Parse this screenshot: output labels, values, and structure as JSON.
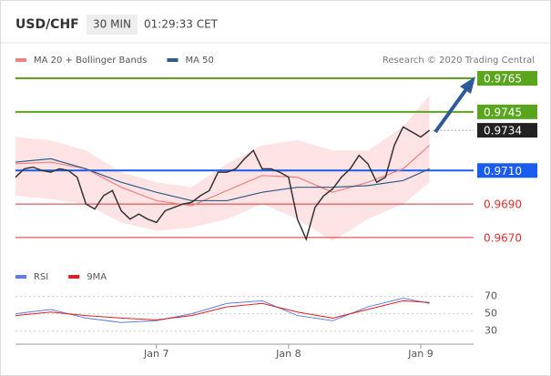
{
  "chart_data": [
    {
      "type": "line",
      "title": "USD/CHF",
      "timeframe": "30 MIN",
      "time": "01:29:33 CET",
      "credit": "Research © 2020 Trading Central",
      "xlim": [
        0,
        52
      ],
      "ylim": [
        0.9658,
        0.9771
      ],
      "price": {
        "color": "#333333",
        "x": [
          0,
          1,
          2,
          3,
          4,
          5,
          6,
          7,
          8,
          9,
          10,
          11,
          12,
          13,
          14,
          15,
          16,
          17,
          18,
          19,
          20,
          21,
          22,
          23,
          24,
          25,
          26,
          27,
          28,
          29,
          30,
          31,
          32,
          33,
          34,
          35,
          36,
          37,
          38,
          39,
          40,
          41,
          42,
          43,
          44,
          45,
          46,
          47
        ],
        "values": [
          0.9706,
          0.9711,
          0.9712,
          0.971,
          0.9709,
          0.9711,
          0.971,
          0.9706,
          0.969,
          0.9687,
          0.9695,
          0.9698,
          0.9686,
          0.9681,
          0.9684,
          0.9681,
          0.9679,
          0.9686,
          0.9688,
          0.969,
          0.9691,
          0.9695,
          0.9698,
          0.9709,
          0.9709,
          0.9711,
          0.9717,
          0.9722,
          0.9711,
          0.9711,
          0.9709,
          0.9706,
          0.9681,
          0.9669,
          0.9688,
          0.9695,
          0.9699,
          0.9706,
          0.9711,
          0.9719,
          0.9714,
          0.9703,
          0.9706,
          0.9725,
          0.9736,
          0.9733,
          0.973,
          0.9734
        ]
      },
      "series": [
        {
          "name": "MA 20 + Bollinger Bands",
          "color": "#f08080",
          "band_color": "#fde3e3",
          "x": [
            0,
            4,
            8,
            12,
            16,
            20,
            24,
            28,
            32,
            36,
            40,
            44,
            47
          ],
          "values": [
            0.9714,
            0.9715,
            0.9711,
            0.97,
            0.9692,
            0.9689,
            0.9698,
            0.9707,
            0.9706,
            0.9697,
            0.9703,
            0.9711,
            0.9725
          ],
          "upper": [
            0.973,
            0.9728,
            0.9722,
            0.9709,
            0.9703,
            0.97,
            0.9714,
            0.9725,
            0.9728,
            0.9722,
            0.9722,
            0.9736,
            0.9755
          ],
          "lower": [
            0.9695,
            0.9693,
            0.969,
            0.9679,
            0.9674,
            0.9676,
            0.9681,
            0.969,
            0.9681,
            0.9668,
            0.9681,
            0.969,
            0.9703
          ]
        },
        {
          "name": "MA 50",
          "color": "#2f5a8a",
          "x": [
            0,
            4,
            8,
            12,
            16,
            20,
            24,
            28,
            32,
            36,
            40,
            44,
            47
          ],
          "values": [
            0.9715,
            0.9717,
            0.9711,
            0.9703,
            0.9697,
            0.9692,
            0.9692,
            0.9697,
            0.97,
            0.97,
            0.9701,
            0.9704,
            0.9711
          ]
        }
      ],
      "levels": [
        {
          "value": 0.9765,
          "label": "0.9765",
          "color": "#5aa51e",
          "boxed": true
        },
        {
          "value": 0.9745,
          "label": "0.9745",
          "color": "#5aa51e",
          "boxed": true
        },
        {
          "value": 0.9734,
          "label": "0.9734",
          "color": "#222222",
          "boxed": true,
          "dotted": true
        },
        {
          "value": 0.971,
          "label": "0.9710",
          "color": "#1a5cf0",
          "boxed": true
        },
        {
          "value": 0.969,
          "label": "0.9690",
          "color": "#e03030",
          "boxed": false
        },
        {
          "value": 0.967,
          "label": "0.9670",
          "color": "#e03030",
          "boxed": false
        }
      ]
    },
    {
      "type": "line",
      "xlim": [
        0,
        52
      ],
      "ylim": [
        15,
        78
      ],
      "yticks": [
        30,
        50,
        70
      ],
      "xticks": [
        {
          "value": 16,
          "label": "Jan 7"
        },
        {
          "value": 31,
          "label": "Jan 8"
        },
        {
          "value": 46,
          "label": "Jan 9"
        }
      ],
      "series": [
        {
          "name": "RSI",
          "color": "#5b7fe0",
          "x": [
            0,
            4,
            8,
            12,
            16,
            20,
            24,
            28,
            32,
            36,
            40,
            44,
            47
          ],
          "values": [
            50,
            55,
            45,
            40,
            42,
            50,
            62,
            65,
            48,
            42,
            58,
            68,
            62
          ]
        },
        {
          "name": "9MA",
          "color": "#e02020",
          "x": [
            0,
            4,
            8,
            12,
            16,
            20,
            24,
            28,
            32,
            36,
            40,
            44,
            47
          ],
          "values": [
            48,
            52,
            48,
            45,
            43,
            48,
            58,
            62,
            52,
            45,
            55,
            65,
            63
          ]
        }
      ]
    }
  ]
}
